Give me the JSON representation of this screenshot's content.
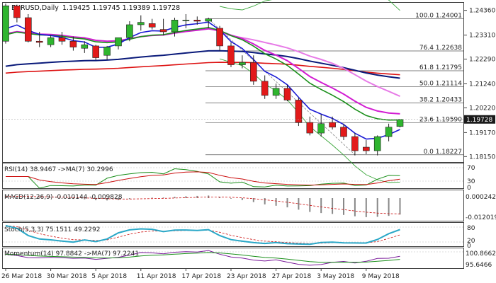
{
  "header": {
    "symbol": "EURUSD,Daily",
    "ohlc": "1.19425 1.19745 1.19389 1.19728"
  },
  "price_tag": "1.19728",
  "price_axis": [
    "1.24360",
    "1.23310",
    "1.22290",
    "1.21240",
    "1.20220",
    "1.19170",
    "1.18150"
  ],
  "fib_levels": [
    {
      "label": "100.0 1.24001",
      "value": 1.24001
    },
    {
      "label": "76.4 1.22638",
      "value": 1.22638
    },
    {
      "label": "61.8 1.21795",
      "value": 1.21795
    },
    {
      "label": "50.0 1.21114",
      "value": 1.21114
    },
    {
      "label": "38.2 1.20433",
      "value": 1.20433
    },
    {
      "label": "23.6 1.19590",
      "value": 1.1959
    },
    {
      "label": "0.0 1.18227",
      "value": 1.18227
    }
  ],
  "indicators": {
    "rsi": {
      "label": "RSI(14) 38.9467 ->MA(7) 30.2996",
      "ticks": [
        "70",
        "30",
        "0"
      ]
    },
    "macd": {
      "label": "MACD(12,26,9) -0.010144 -0.009828",
      "ticks": [
        "0.000242",
        "-0.012019"
      ]
    },
    "stoch": {
      "label": "Stoch(5,3,3) 75.1511 49.2292",
      "ticks": [
        "80",
        "20",
        "0"
      ]
    },
    "momentum": {
      "label": "Momentum(14) 97.8842 ->MA(7) 97.2241",
      "ticks": [
        "100.8662",
        "95.6466"
      ]
    }
  },
  "x_axis": [
    "26 Mar 2018",
    "30 Mar 2018",
    "5 Apr 2018",
    "11 Apr 2018",
    "17 Apr 2018",
    "23 Apr 2018",
    "27 Apr 2018",
    "3 May 2018",
    "9 May 2018"
  ],
  "colors": {
    "bull": "#2fb52f",
    "bear": "#e21a1a",
    "ma_magenta": "#d21ed2",
    "ma_pink": "#e77be7",
    "ma_navy": "#0a1a7a",
    "ma_blue": "#1a1ad4",
    "ma_green": "#1a8f1a",
    "ma_red": "#dd1111",
    "bollinger": "#3aa63a",
    "rsi_ma": "#cc1111",
    "stoch_main": "#2aa8c8",
    "stoch_signal": "#cc1111"
  },
  "chart_data": {
    "type": "candlestick",
    "title": "EURUSD,Daily",
    "ylim": [
      1.1795,
      1.2462
    ],
    "candles": [
      {
        "o": 1.2305,
        "h": 1.2465,
        "l": 1.2295,
        "c": 1.2455
      },
      {
        "o": 1.2455,
        "h": 1.246,
        "l": 1.2385,
        "c": 1.2405
      },
      {
        "o": 1.2405,
        "h": 1.242,
        "l": 1.23,
        "c": 1.2305
      },
      {
        "o": 1.2305,
        "h": 1.2345,
        "l": 1.228,
        "c": 1.23
      },
      {
        "o": 1.229,
        "h": 1.233,
        "l": 1.228,
        "c": 1.232
      },
      {
        "o": 1.232,
        "h": 1.2345,
        "l": 1.229,
        "c": 1.2305
      },
      {
        "o": 1.2305,
        "h": 1.2325,
        "l": 1.2265,
        "c": 1.228
      },
      {
        "o": 1.2275,
        "h": 1.2305,
        "l": 1.2255,
        "c": 1.229
      },
      {
        "o": 1.2285,
        "h": 1.229,
        "l": 1.2225,
        "c": 1.2235
      },
      {
        "o": 1.2245,
        "h": 1.2285,
        "l": 1.2225,
        "c": 1.228
      },
      {
        "o": 1.2285,
        "h": 1.232,
        "l": 1.227,
        "c": 1.232
      },
      {
        "o": 1.232,
        "h": 1.239,
        "l": 1.2305,
        "c": 1.2375
      },
      {
        "o": 1.2375,
        "h": 1.2415,
        "l": 1.235,
        "c": 1.2385
      },
      {
        "o": 1.238,
        "h": 1.24,
        "l": 1.2355,
        "c": 1.2365
      },
      {
        "o": 1.2355,
        "h": 1.24,
        "l": 1.233,
        "c": 1.2345
      },
      {
        "o": 1.2345,
        "h": 1.2405,
        "l": 1.2325,
        "c": 1.2395
      },
      {
        "o": 1.2395,
        "h": 1.242,
        "l": 1.236,
        "c": 1.2395
      },
      {
        "o": 1.2395,
        "h": 1.241,
        "l": 1.2375,
        "c": 1.239
      },
      {
        "o": 1.239,
        "h": 1.2405,
        "l": 1.236,
        "c": 1.24
      },
      {
        "o": 1.236,
        "h": 1.237,
        "l": 1.2265,
        "c": 1.2285
      },
      {
        "o": 1.2285,
        "h": 1.23,
        "l": 1.2195,
        "c": 1.2205
      },
      {
        "o": 1.2205,
        "h": 1.2245,
        "l": 1.219,
        "c": 1.2215
      },
      {
        "o": 1.2215,
        "h": 1.2245,
        "l": 1.212,
        "c": 1.2135
      },
      {
        "o": 1.2135,
        "h": 1.216,
        "l": 1.206,
        "c": 1.2075
      },
      {
        "o": 1.2075,
        "h": 1.2125,
        "l": 1.206,
        "c": 1.2105
      },
      {
        "o": 1.2105,
        "h": 1.212,
        "l": 1.205,
        "c": 1.2055
      },
      {
        "o": 1.2055,
        "h": 1.2065,
        "l": 1.1945,
        "c": 1.196
      },
      {
        "o": 1.196,
        "h": 1.1985,
        "l": 1.1905,
        "c": 1.1915
      },
      {
        "o": 1.1915,
        "h": 1.1995,
        "l": 1.19,
        "c": 1.1955
      },
      {
        "o": 1.196,
        "h": 1.1985,
        "l": 1.193,
        "c": 1.194
      },
      {
        "o": 1.194,
        "h": 1.1955,
        "l": 1.1885,
        "c": 1.19
      },
      {
        "o": 1.19,
        "h": 1.1915,
        "l": 1.182,
        "c": 1.184
      },
      {
        "o": 1.1855,
        "h": 1.1885,
        "l": 1.1825,
        "c": 1.184
      },
      {
        "o": 1.184,
        "h": 1.1905,
        "l": 1.182,
        "c": 1.19
      },
      {
        "o": 1.19,
        "h": 1.1955,
        "l": 1.188,
        "c": 1.194
      },
      {
        "o": 1.1943,
        "h": 1.1975,
        "l": 1.1939,
        "c": 1.1973
      }
    ]
  }
}
